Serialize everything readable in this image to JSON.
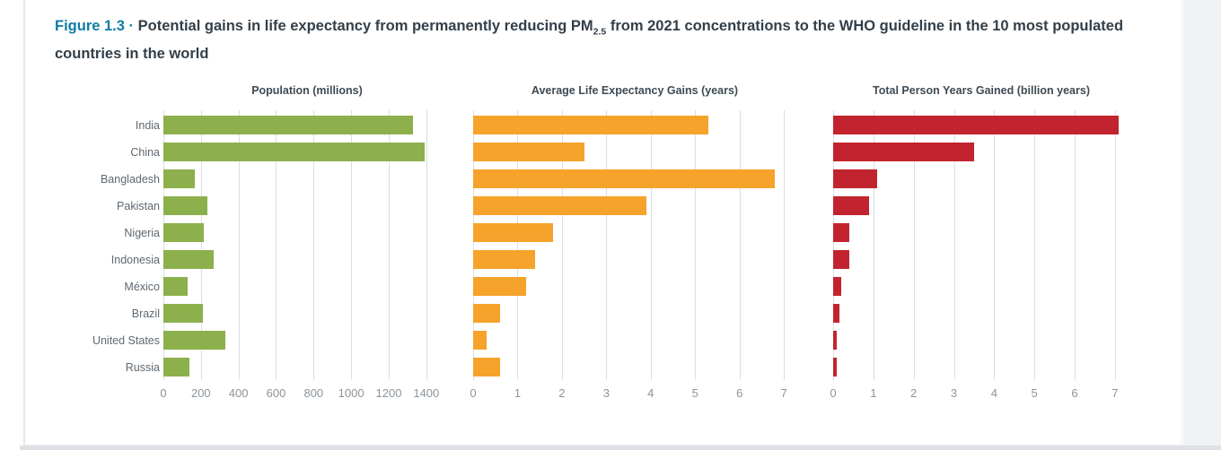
{
  "figure": {
    "label": "Figure 1.3",
    "separator": " · ",
    "title_pre": "Potential gains in life expectancy from permanently reducing PM",
    "title_sub": "2.5",
    "title_post": " from 2021 concentrations to the WHO guideline in the 10 most populated countries in the world"
  },
  "countries": [
    "India",
    "China",
    "Bangladesh",
    "Pakistan",
    "Nigeria",
    "Indonesia",
    "México",
    "Brazil",
    "United States",
    "Russia"
  ],
  "colors": {
    "accent_teal": "#0f7ca5",
    "title_text": "#333f49",
    "country_label": "#5e6870",
    "panel_title": "#3e4b55",
    "tick_label": "#8c949b",
    "gridline": "#dadfe3",
    "green": "#8cb04c",
    "orange": "#f6a32b",
    "red": "#c2242f"
  },
  "chart_data": [
    {
      "type": "bar",
      "orientation": "horizontal",
      "title": "Population (millions)",
      "categories": [
        "India",
        "China",
        "Bangladesh",
        "Pakistan",
        "Nigeria",
        "Indonesia",
        "México",
        "Brazil",
        "United States",
        "Russia"
      ],
      "values": [
        1330,
        1390,
        165,
        235,
        215,
        270,
        130,
        210,
        330,
        140
      ],
      "xlim": [
        0,
        1400
      ],
      "ticks": [
        0,
        200,
        400,
        600,
        800,
        1000,
        1200,
        1400
      ],
      "plot_max": 1530,
      "grid": true,
      "bar_color": "#8cb04c"
    },
    {
      "type": "bar",
      "orientation": "horizontal",
      "title": "Average Life Expectancy Gains (years)",
      "categories": [
        "India",
        "China",
        "Bangladesh",
        "Pakistan",
        "Nigeria",
        "Indonesia",
        "México",
        "Brazil",
        "United States",
        "Russia"
      ],
      "values": [
        5.3,
        2.5,
        6.8,
        3.9,
        1.8,
        1.4,
        1.2,
        0.6,
        0.3,
        0.6
      ],
      "xlim": [
        0,
        7
      ],
      "ticks": [
        0,
        1,
        2,
        3,
        4,
        5,
        6,
        7
      ],
      "plot_max": 7.28,
      "grid": true,
      "bar_color": "#f6a32b"
    },
    {
      "type": "bar",
      "orientation": "horizontal",
      "title": "Total Person Years Gained (billion years)",
      "categories": [
        "India",
        "China",
        "Bangladesh",
        "Pakistan",
        "Nigeria",
        "Indonesia",
        "México",
        "Brazil",
        "United States",
        "Russia"
      ],
      "values": [
        7.1,
        3.5,
        1.1,
        0.9,
        0.4,
        0.4,
        0.2,
        0.15,
        0.1,
        0.1
      ],
      "xlim": [
        0,
        7
      ],
      "ticks": [
        0,
        1,
        2,
        3,
        4,
        5,
        6,
        7
      ],
      "plot_max": 7.36,
      "grid": true,
      "bar_color": "#c2242f"
    }
  ]
}
